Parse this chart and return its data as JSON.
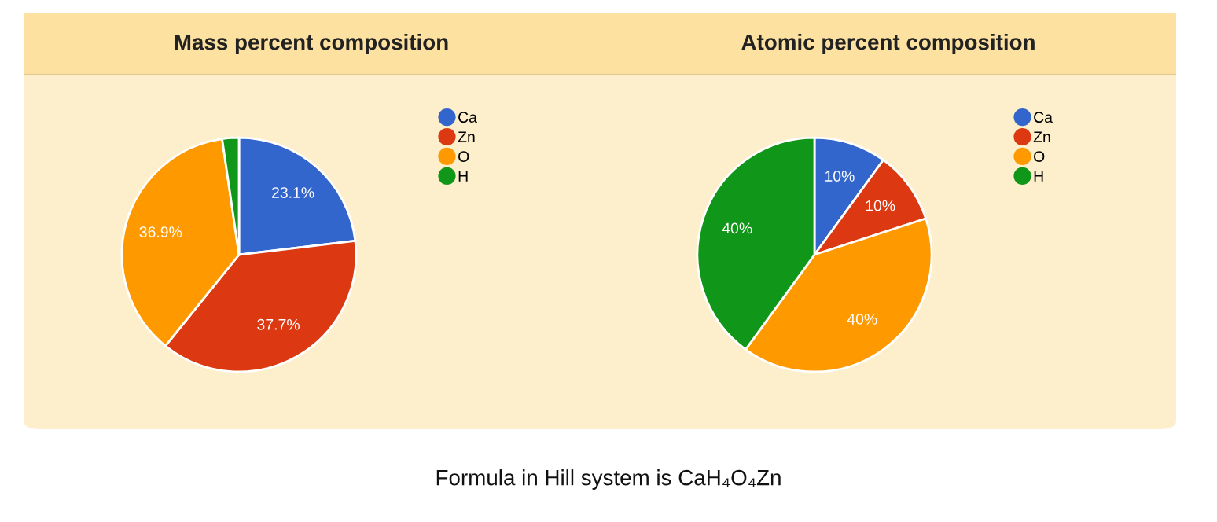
{
  "chart_data": [
    {
      "type": "pie",
      "title": "Mass percent composition",
      "categories": [
        "Ca",
        "Zn",
        "O",
        "H"
      ],
      "values": [
        23.1,
        37.7,
        36.9,
        2.3
      ],
      "colors": [
        "#3366cc",
        "#dc3912",
        "#ff9900",
        "#109618"
      ],
      "value_labels": [
        "23.1%",
        "37.7%",
        "36.9%",
        null
      ],
      "legend": "top right",
      "annotations": [
        "Formula in Hill system is CaH₄O₄Zn"
      ]
    },
    {
      "type": "pie",
      "title": "Atomic percent composition",
      "categories": [
        "Ca",
        "Zn",
        "O",
        "H"
      ],
      "values": [
        10,
        10,
        40,
        40
      ],
      "colors": [
        "#3366cc",
        "#dc3912",
        "#ff9900",
        "#109618"
      ],
      "value_labels": [
        "10%",
        "10%",
        "40%",
        "40%"
      ],
      "legend": "top right"
    }
  ]
}
